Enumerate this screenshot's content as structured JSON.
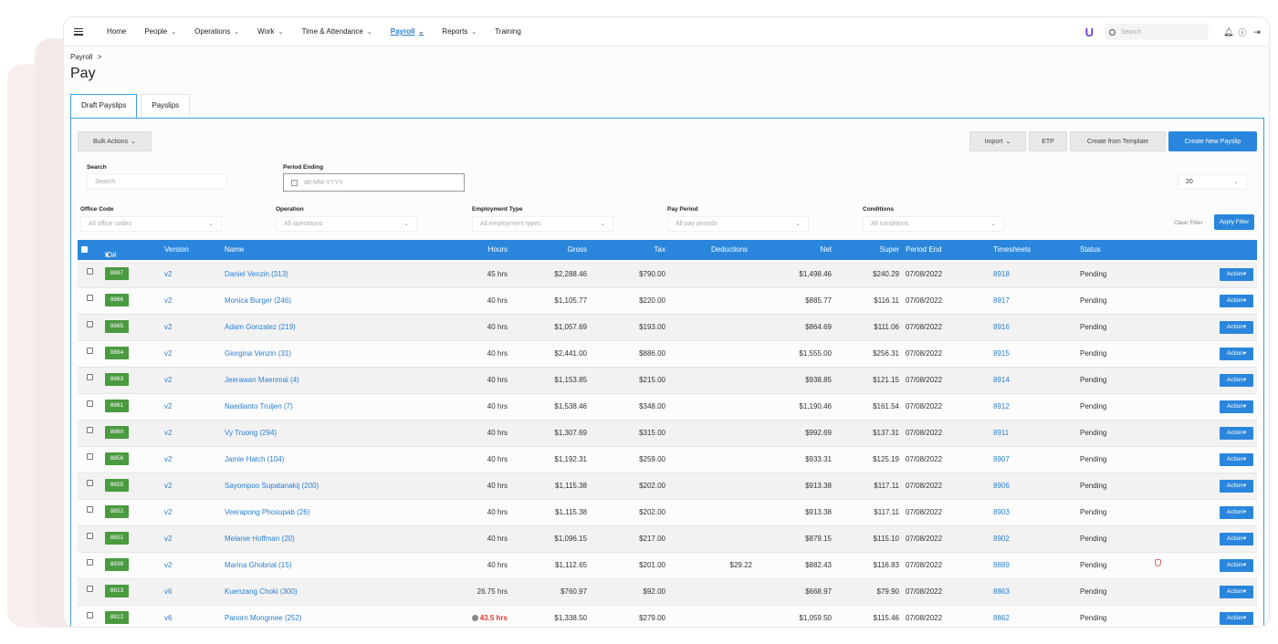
{
  "nav": {
    "items": [
      {
        "label": "Home",
        "dropdown": false,
        "active": false
      },
      {
        "label": "People",
        "dropdown": true,
        "active": false
      },
      {
        "label": "Operations",
        "dropdown": true,
        "active": false
      },
      {
        "label": "Work",
        "dropdown": true,
        "active": false
      },
      {
        "label": "Time & Attendance",
        "dropdown": true,
        "active": false
      },
      {
        "label": "Payroll",
        "dropdown": true,
        "active": true
      },
      {
        "label": "Reports",
        "dropdown": true,
        "active": false
      },
      {
        "label": "Training",
        "dropdown": false,
        "active": false
      }
    ],
    "logo": "U",
    "search_placeholder": "Search",
    "icons": [
      "bell-icon",
      "help-icon",
      "logout-icon"
    ]
  },
  "breadcrumb": {
    "parent": "Payroll",
    "separator": ">"
  },
  "page": {
    "title": "Pay"
  },
  "tabs": [
    {
      "label": "Draft Payslips",
      "active": true
    },
    {
      "label": "Payslips",
      "active": false
    }
  ],
  "toolbar": {
    "bulk_actions": "Bulk Actions",
    "import": "Import",
    "etp": "ETP",
    "create_from_template": "Create from Template",
    "create_new_payslip": "Create New Payslip"
  },
  "filters": {
    "search_label": "Search",
    "search_placeholder": "Search",
    "period_ending_label": "Period Ending",
    "period_ending_placeholder": "dd-MM-YYYY",
    "page_size": "20",
    "office_code_label": "Office Code",
    "office_code_placeholder": "All office codes",
    "operation_label": "Operation",
    "operation_placeholder": "All operations",
    "employment_type_label": "Employment Type",
    "employment_type_placeholder": "All employment types",
    "pay_period_label": "Pay Period",
    "pay_period_placeholder": "All pay periods",
    "conditions_label": "Conditions",
    "conditions_placeholder": "All conditions",
    "clear_filter": "Clear Filter",
    "apply_filter": "Apply Filter"
  },
  "table": {
    "columns": {
      "id": "ID#",
      "version": "Version",
      "name": "Name",
      "hours": "Hours",
      "gross": "Gross",
      "tax": "Tax",
      "deductions": "Deductions",
      "net": "Net",
      "super": "Super",
      "period_end": "Period End",
      "timesheets": "Timesheets",
      "status": "Status"
    },
    "action_label": "Action",
    "rows": [
      {
        "id": "8867",
        "version": "v2",
        "name": "Daniel Venzin (313)",
        "hours": "45 hrs",
        "gross": "$2,288.46",
        "tax": "$790.00",
        "deductions": "",
        "net": "$1,498.46",
        "super": "$240.29",
        "period_end": "07/08/2022",
        "timesheets": "8918",
        "status": "Pending"
      },
      {
        "id": "8866",
        "version": "v2",
        "name": "Monica Burger (246)",
        "hours": "40 hrs",
        "gross": "$1,105.77",
        "tax": "$220.00",
        "deductions": "",
        "net": "$885.77",
        "super": "$116.11",
        "period_end": "07/08/2022",
        "timesheets": "8917",
        "status": "Pending"
      },
      {
        "id": "8865",
        "version": "v2",
        "name": "Adam Gonzalez (219)",
        "hours": "40 hrs",
        "gross": "$1,057.69",
        "tax": "$193.00",
        "deductions": "",
        "net": "$864.69",
        "super": "$111.06",
        "period_end": "07/08/2022",
        "timesheets": "8916",
        "status": "Pending"
      },
      {
        "id": "8864",
        "version": "v2",
        "name": "Giorgina Venzin (31)",
        "hours": "40 hrs",
        "gross": "$2,441.00",
        "tax": "$886.00",
        "deductions": "",
        "net": "$1,555.00",
        "super": "$256.31",
        "period_end": "07/08/2022",
        "timesheets": "8915",
        "status": "Pending"
      },
      {
        "id": "8863",
        "version": "v2",
        "name": "Jeerawan Maenmai (4)",
        "hours": "40 hrs",
        "gross": "$1,153.85",
        "tax": "$215.00",
        "deductions": "",
        "net": "$938.85",
        "super": "$121.15",
        "period_end": "07/08/2022",
        "timesheets": "8914",
        "status": "Pending"
      },
      {
        "id": "8861",
        "version": "v2",
        "name": "Naedianto Truijen (7)",
        "hours": "40 hrs",
        "gross": "$1,538.46",
        "tax": "$348.00",
        "deductions": "",
        "net": "$1,190.46",
        "super": "$161.54",
        "period_end": "07/08/2022",
        "timesheets": "8912",
        "status": "Pending"
      },
      {
        "id": "8860",
        "version": "v2",
        "name": "Vy Truong (294)",
        "hours": "40 hrs",
        "gross": "$1,307.69",
        "tax": "$315.00",
        "deductions": "",
        "net": "$992.69",
        "super": "$137.31",
        "period_end": "07/08/2022",
        "timesheets": "8911",
        "status": "Pending"
      },
      {
        "id": "8856",
        "version": "v2",
        "name": "Jamie Hatch (104)",
        "hours": "40 hrs",
        "gross": "$1,192.31",
        "tax": "$259.00",
        "deductions": "",
        "net": "$933.31",
        "super": "$125.19",
        "period_end": "07/08/2022",
        "timesheets": "8907",
        "status": "Pending"
      },
      {
        "id": "8855",
        "version": "v2",
        "name": "Sayompoo Supatanakij (200)",
        "hours": "40 hrs",
        "gross": "$1,115.38",
        "tax": "$202.00",
        "deductions": "",
        "net": "$913.38",
        "super": "$117.11",
        "period_end": "07/08/2022",
        "timesheets": "8906",
        "status": "Pending"
      },
      {
        "id": "8852",
        "version": "v2",
        "name": "Veerapong Phosupab (26)",
        "hours": "40 hrs",
        "gross": "$1,115.38",
        "tax": "$202.00",
        "deductions": "",
        "net": "$913.38",
        "super": "$117.11",
        "period_end": "07/08/2022",
        "timesheets": "8903",
        "status": "Pending"
      },
      {
        "id": "8851",
        "version": "v2",
        "name": "Melanie Hoffman (20)",
        "hours": "40 hrs",
        "gross": "$1,096.15",
        "tax": "$217.00",
        "deductions": "",
        "net": "$879.15",
        "super": "$115.10",
        "period_end": "07/08/2022",
        "timesheets": "8902",
        "status": "Pending"
      },
      {
        "id": "8838",
        "version": "v2",
        "name": "Marina Ghobrial (15)",
        "hours": "40 hrs",
        "gross": "$1,112.65",
        "tax": "$201.00",
        "deductions": "$29.22",
        "net": "$882.43",
        "super": "$116.83",
        "period_end": "07/08/2022",
        "timesheets": "8889",
        "status": "Pending",
        "flag": "shield-icon"
      },
      {
        "id": "8813",
        "version": "v6",
        "name": "Kuenzang Choki (300)",
        "hours": "26.75 hrs",
        "gross": "$760.97",
        "tax": "$92.00",
        "deductions": "",
        "net": "$668.97",
        "super": "$79.90",
        "period_end": "07/08/2022",
        "timesheets": "8863",
        "status": "Pending"
      },
      {
        "id": "8812",
        "version": "v6",
        "name": "Panorn Mongmee (252)",
        "hours": "43.5 hrs",
        "hours_warning": true,
        "gross": "$1,338.50",
        "tax": "$279.00",
        "deductions": "",
        "net": "$1,059.50",
        "super": "$115.46",
        "period_end": "07/08/2022",
        "timesheets": "8862",
        "status": "Pending"
      }
    ]
  }
}
